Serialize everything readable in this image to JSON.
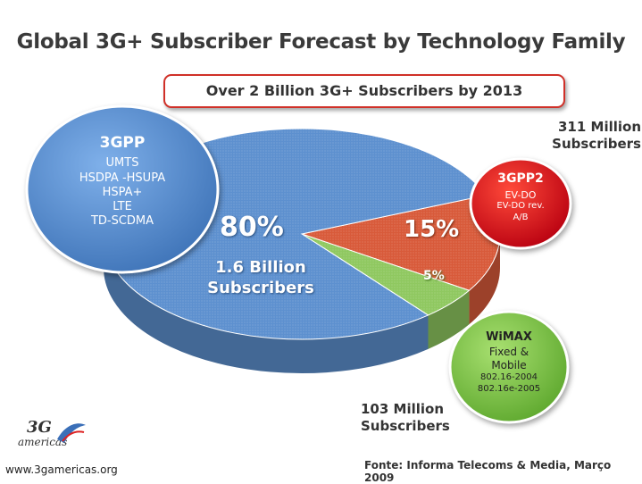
{
  "title": "Global 3G+ Subscriber Forecast by Technology Family",
  "banner": "Over 2 Billion 3G+ Subscribers by 2013",
  "chart_data": {
    "type": "pie",
    "title": "Global 3G+ Subscriber Forecast by Technology Family",
    "slices": [
      {
        "name": "3GPP",
        "percent": 80,
        "label": "80%",
        "subscribers_line1": "1.6 Billion",
        "subscribers_line2": "Subscribers",
        "color": "#5d90cf"
      },
      {
        "name": "3GPP2",
        "percent": 15,
        "label": "15%",
        "color": "#d85a3a"
      },
      {
        "name": "WiMAX",
        "percent": 5,
        "label": "5%",
        "color": "#8fc860"
      }
    ]
  },
  "bubbles": {
    "gpp": {
      "name": "3GPP",
      "items": [
        "UMTS",
        "HSDPA -HSUPA",
        "HSPA+",
        "LTE",
        "TD-SCDMA"
      ],
      "color": "#4d84c6"
    },
    "gpp2": {
      "name": "3GPP2",
      "items": [
        "EV-DO",
        "EV-DO rev.",
        "A/B"
      ],
      "color": "#d4101a"
    },
    "wimax": {
      "name": "WiMAX",
      "items": [
        "Fixed &",
        "Mobile",
        "802.16-2004",
        "802.16e-2005"
      ],
      "color": "#7cc242"
    }
  },
  "callouts": {
    "gpp2_line1": "311 Million",
    "gpp2_line2": "Subscribers",
    "wimax_line1": "103 Million",
    "wimax_line2": "Subscribers"
  },
  "logo": {
    "mark": "3G",
    "word": "americas"
  },
  "footer": {
    "url": "www.3gamericas.org",
    "source": "Fonte: Informa Telecoms & Media, Março 2009"
  }
}
